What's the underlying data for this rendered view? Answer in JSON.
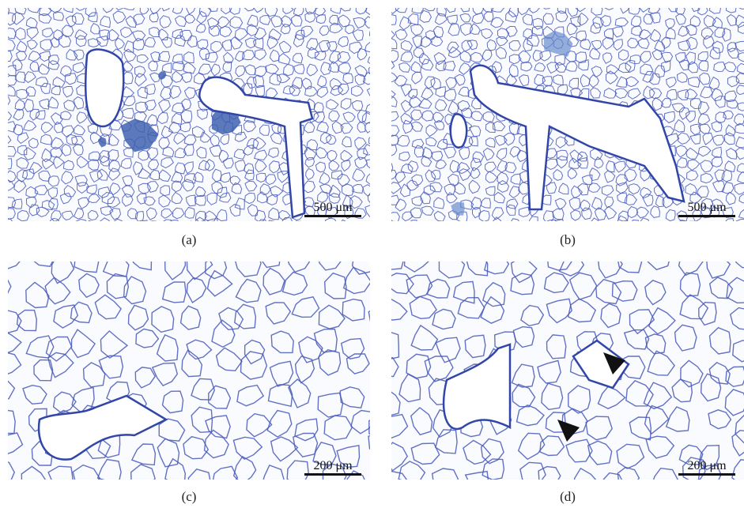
{
  "panels": [
    {
      "label": "(a)",
      "scale_bar": "500 μm"
    },
    {
      "label": "(b)",
      "scale_bar": "500 μm"
    },
    {
      "label": "(c)",
      "scale_bar": "200 μm"
    },
    {
      "label": "(d)",
      "scale_bar": "200 μm"
    }
  ]
}
